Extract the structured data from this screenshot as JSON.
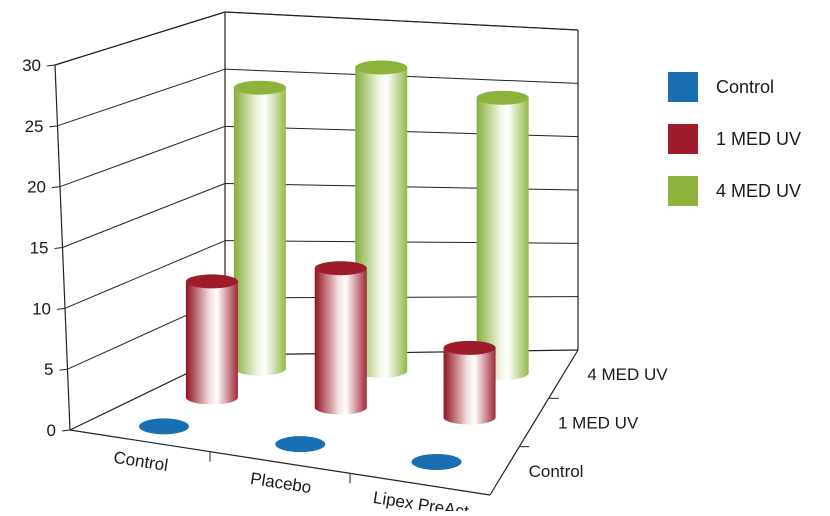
{
  "chart_data": {
    "type": "bar",
    "title": "",
    "xlabel": "",
    "ylabel": "",
    "ylim": [
      0,
      30
    ],
    "yticks": [
      0,
      5,
      10,
      15,
      20,
      25,
      30
    ],
    "categories": [
      "Control",
      "Placebo",
      "Lipex PreAct"
    ],
    "series": [
      {
        "name": "Control",
        "values": [
          0,
          0,
          0
        ],
        "color": "#1a6fb3"
      },
      {
        "name": "1 MED UV",
        "values": [
          10,
          12,
          6
        ],
        "color": "#9e1b2c"
      },
      {
        "name": "4 MED UV",
        "values": [
          25,
          27,
          24.5
        ],
        "color": "#8db33c"
      }
    ],
    "depth_labels": [
      "Control",
      "1 MED UV",
      "4 MED UV"
    ],
    "legend_position": "right",
    "grid": true
  }
}
